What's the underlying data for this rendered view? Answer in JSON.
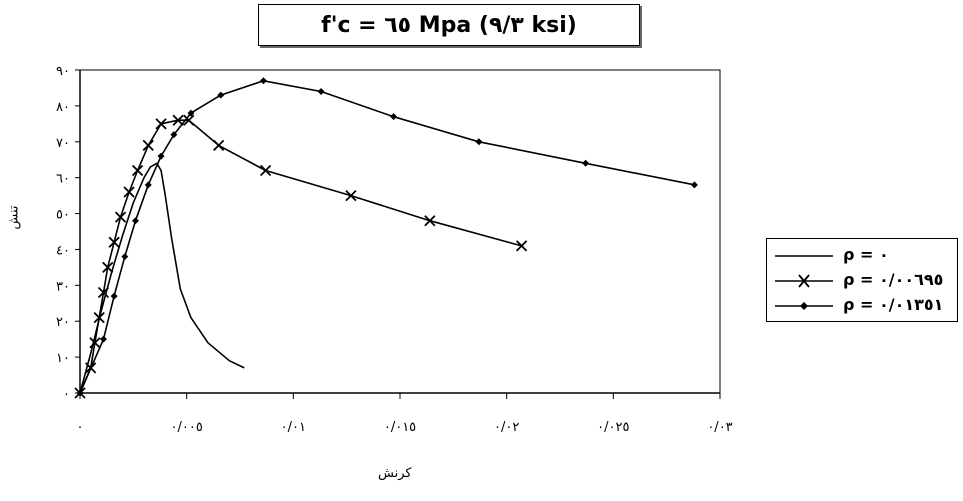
{
  "chart_data": {
    "type": "line",
    "title": "f'c = ٦٥ Mpa (٩/٣ ksi)",
    "xlabel": "کرنش",
    "ylabel": "تنش",
    "xlim": [
      0,
      0.03
    ],
    "ylim": [
      0,
      90
    ],
    "x_tick_values": [
      0,
      0.005,
      0.01,
      0.015,
      0.02,
      0.025,
      0.03
    ],
    "x_tick_labels": [
      "٠",
      "٠/٠٠٥",
      "٠/٠١",
      "٠/٠١٥",
      "٠/٠٢",
      "٠/٠٢٥",
      "٠/٠٣"
    ],
    "y_tick_values": [
      0,
      10,
      20,
      30,
      40,
      50,
      60,
      70,
      80,
      90
    ],
    "y_tick_labels": [
      "٠",
      "١٠",
      "٢٠",
      "٣٠",
      "٤٠",
      "٥٠",
      "٦٠",
      "٧٠",
      "٨٠",
      "٩٠"
    ],
    "legend_position": "right",
    "grid": false,
    "series": [
      {
        "name": "ρ = ٠",
        "marker": "none",
        "color": "#000000",
        "x": [
          0,
          0.0005,
          0.001,
          0.0015,
          0.002,
          0.0025,
          0.003,
          0.0033,
          0.0036,
          0.0038,
          0.004,
          0.0043,
          0.0047,
          0.0052,
          0.006,
          0.007,
          0.0077
        ],
        "y": [
          0,
          11,
          23,
          34,
          44,
          53,
          60,
          63,
          64,
          62,
          55,
          43,
          29,
          21,
          14,
          9,
          7
        ]
      },
      {
        "name": "ρ = ٠/٠٠٦٩٥",
        "marker": "x",
        "color": "#000000",
        "x": [
          0,
          0.0005,
          0.0007,
          0.0009,
          0.0011,
          0.0013,
          0.0016,
          0.0019,
          0.0023,
          0.0027,
          0.0032,
          0.0038,
          0.0046,
          0.0051,
          0.0065,
          0.0087,
          0.0127,
          0.0164,
          0.0207
        ],
        "y": [
          0,
          7,
          14,
          21,
          28,
          35,
          42,
          49,
          56,
          62,
          69,
          75,
          76,
          76,
          69,
          62,
          55,
          48,
          41
        ]
      },
      {
        "name": "ρ = ٠/٠١٣٥١",
        "marker": "diamond",
        "color": "#000000",
        "x": [
          0,
          0.0011,
          0.0016,
          0.0021,
          0.0026,
          0.0032,
          0.0038,
          0.0044,
          0.0052,
          0.0066,
          0.0086,
          0.0113,
          0.0147,
          0.0187,
          0.0237,
          0.0288
        ],
        "y": [
          0,
          15,
          27,
          38,
          48,
          58,
          66,
          72,
          78,
          83,
          87,
          84,
          77,
          70,
          64,
          58
        ]
      }
    ]
  }
}
